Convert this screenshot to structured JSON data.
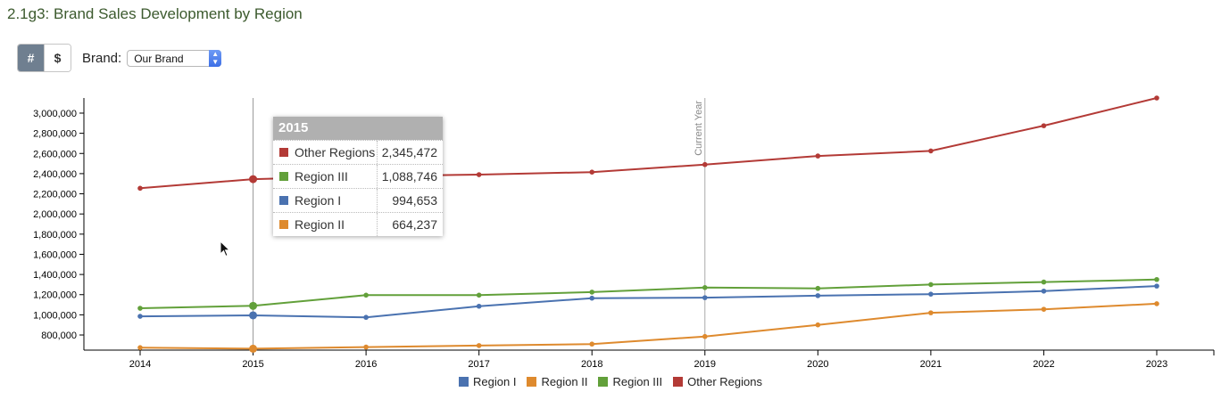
{
  "page": {
    "title": "2.1g3: Brand Sales Development by Region"
  },
  "toolbar": {
    "buttons": [
      {
        "label": "#",
        "active": true
      },
      {
        "label": "$",
        "active": false
      }
    ],
    "brand_label": "Brand:",
    "brand_selected": "Our Brand"
  },
  "colors": {
    "Region I": "#4a72b0",
    "Region II": "#de8a2e",
    "Region III": "#62a03a",
    "Other Regions": "#b33a36"
  },
  "tooltip": {
    "year": "2015",
    "rows": [
      {
        "name": "Other Regions",
        "value": "2,345,472"
      },
      {
        "name": "Region III",
        "value": "1,088,746"
      },
      {
        "name": "Region I",
        "value": "994,653"
      },
      {
        "name": "Region II",
        "value": "664,237"
      }
    ]
  },
  "chart_data": {
    "type": "line",
    "title": "",
    "xlabel": "",
    "ylabel": "",
    "x": [
      2014,
      2015,
      2016,
      2017,
      2018,
      2019,
      2020,
      2021,
      2022,
      2023
    ],
    "ylim": [
      650000,
      3150000
    ],
    "yticks": [
      800000,
      1000000,
      1200000,
      1400000,
      1600000,
      1800000,
      2000000,
      2200000,
      2400000,
      2600000,
      2800000,
      3000000
    ],
    "annotation": {
      "x": 2019,
      "label": "Current Year"
    },
    "hover": {
      "x": 2015
    },
    "grid": false,
    "legend_position": "bottom",
    "series": [
      {
        "name": "Region I",
        "values": [
          985000,
          994653,
          975000,
          1085000,
          1165000,
          1170000,
          1190000,
          1205000,
          1235000,
          1285000
        ]
      },
      {
        "name": "Region II",
        "values": [
          675000,
          664237,
          680000,
          695000,
          710000,
          785000,
          900000,
          1020000,
          1055000,
          1110000
        ]
      },
      {
        "name": "Region III",
        "values": [
          1065000,
          1088746,
          1195000,
          1195000,
          1225000,
          1270000,
          1262000,
          1300000,
          1325000,
          1350000
        ]
      },
      {
        "name": "Other Regions",
        "values": [
          2255000,
          2345472,
          2375000,
          2390000,
          2415000,
          2490000,
          2575000,
          2625000,
          2875000,
          3150000
        ]
      }
    ]
  }
}
